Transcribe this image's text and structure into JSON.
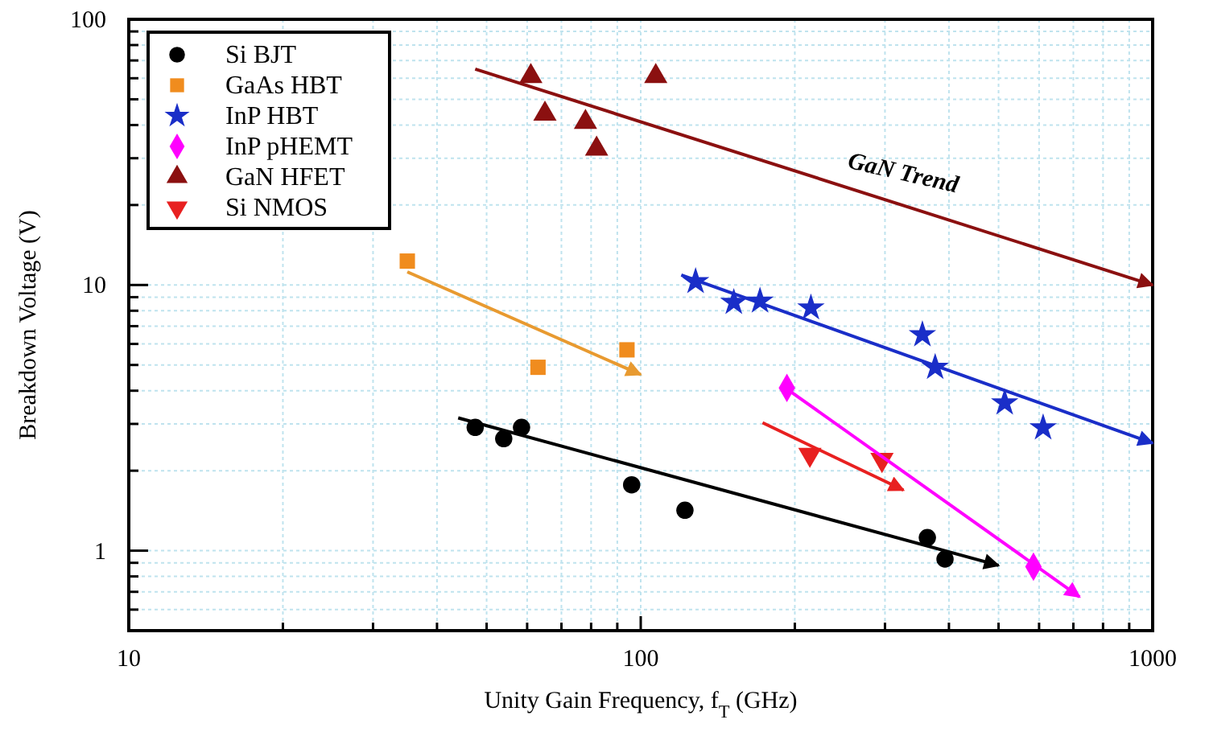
{
  "chart_data": {
    "type": "scatter",
    "xlabel": "Unity Gain Frequency, f$_{T}$ (GHz)",
    "ylabel": "Breakdown Voltage (V)",
    "log": "xy",
    "grid": true,
    "legend": "top left",
    "xlim": [
      10,
      1000
    ],
    "ylim": [
      0.5,
      100
    ],
    "xticks": [
      10,
      {
        "value": 20,
        "label": null
      },
      {
        "value": 30,
        "label": null
      },
      {
        "value": 40,
        "label": null
      },
      {
        "value": 50,
        "label": null
      },
      {
        "value": 60,
        "label": null
      },
      {
        "value": 70,
        "label": null
      },
      {
        "value": 80,
        "label": null
      },
      {
        "value": 90,
        "label": null
      },
      100,
      {
        "value": 200,
        "label": null
      },
      {
        "value": 300,
        "label": null
      },
      {
        "value": 400,
        "label": null
      },
      {
        "value": 500,
        "label": null
      },
      {
        "value": 600,
        "label": null
      },
      {
        "value": 700,
        "label": null
      },
      {
        "value": 800,
        "label": null
      },
      {
        "value": 900,
        "label": null
      },
      1000
    ],
    "yticks": [
      {
        "value": 0.6,
        "label": null
      },
      {
        "value": 0.7,
        "label": null
      },
      {
        "value": 0.8,
        "label": null
      },
      {
        "value": 0.9,
        "label": null
      },
      1,
      {
        "value": 2,
        "label": null
      },
      {
        "value": 3,
        "label": null
      },
      {
        "value": 4,
        "label": null
      },
      {
        "value": 5,
        "label": null
      },
      {
        "value": 6,
        "label": null
      },
      {
        "value": 7,
        "label": null
      },
      {
        "value": 8,
        "label": null
      },
      {
        "value": 9,
        "label": null
      },
      10,
      {
        "value": 20,
        "label": null
      },
      {
        "value": 30,
        "label": null
      },
      {
        "value": 40,
        "label": null
      },
      {
        "value": 50,
        "label": null
      },
      {
        "value": 60,
        "label": null
      },
      {
        "value": 70,
        "label": null
      },
      {
        "value": 80,
        "label": null
      },
      {
        "value": 90,
        "label": null
      },
      100
    ],
    "annotations": [
      "GaN Trend"
    ],
    "series": [
      {
        "name": "Si BJT",
        "color": "#000000",
        "marker": "circle",
        "x": [
          47.5,
          54,
          58.5,
          96,
          122,
          363,
          393
        ],
        "values": [
          2.91,
          2.64,
          2.91,
          1.77,
          1.42,
          1.12,
          0.93
        ]
      },
      {
        "name": "GaAs HBT",
        "color": "#f08c1e",
        "marker": "square",
        "x": [
          35,
          63,
          94
        ],
        "values": [
          12.3,
          4.9,
          5.7
        ]
      },
      {
        "name": "InP HBT",
        "color": "#1a2ec8",
        "marker": "star",
        "x": [
          128,
          152,
          171,
          215,
          355,
          376,
          514,
          611
        ],
        "values": [
          10.3,
          8.6,
          8.7,
          8.2,
          6.5,
          4.9,
          3.6,
          2.9
        ]
      },
      {
        "name": "InP pHEMT",
        "color": "#ff00ff",
        "marker": "diamond",
        "x": [
          193,
          585
        ],
        "values": [
          4.1,
          0.87
        ]
      },
      {
        "name": "GaN HFET",
        "color": "#8b1010",
        "marker": "triangle",
        "x": [
          61,
          65,
          78,
          82,
          107
        ],
        "values": [
          61,
          44,
          41,
          32.5,
          61
        ]
      },
      {
        "name": "Si NMOS",
        "color": "#e82020",
        "marker": "triangle-down",
        "x": [
          214,
          296
        ],
        "values": [
          2.3,
          2.2
        ]
      },
      {
        "type": "line",
        "color": "#000000",
        "marker": "none",
        "x": [
          44,
          500
        ],
        "values": [
          3.16,
          0.88
        ]
      },
      {
        "type": "line",
        "color": "#e89a30",
        "marker": "none",
        "x": [
          35,
          100
        ],
        "values": [
          11.2,
          4.6
        ]
      },
      {
        "type": "line",
        "color": "#1a2ec8",
        "marker": "none",
        "x": [
          120,
          1000
        ],
        "values": [
          10.9,
          2.54
        ]
      },
      {
        "type": "line",
        "color": "#ff00ff",
        "marker": "none",
        "x": [
          193,
          720
        ],
        "values": [
          4.06,
          0.67
        ]
      },
      {
        "type": "line",
        "color": "#8b1010",
        "marker": "none",
        "x": [
          47.5,
          1000
        ],
        "values": [
          65,
          10
        ]
      },
      {
        "type": "line",
        "color": "#e82020",
        "marker": "none",
        "x": [
          173,
          326
        ],
        "values": [
          3.03,
          1.69
        ]
      }
    ]
  }
}
